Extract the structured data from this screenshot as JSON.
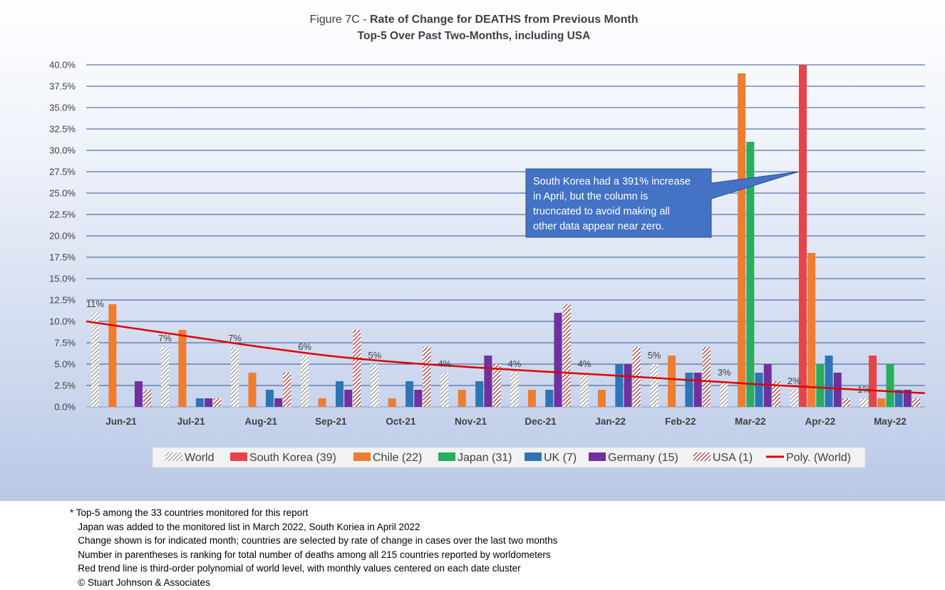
{
  "chart_data": {
    "type": "bar",
    "title_prefix": "Figure 7C - ",
    "title_bold": "Rate of Change for DEATHS from Previous Month",
    "subtitle": "Top-5 Over Past Two-Months, including USA",
    "categories": [
      "Jun-21",
      "Jul-21",
      "Aug-21",
      "Sep-21",
      "Oct-21",
      "Nov-21",
      "Dec-21",
      "Jan-22",
      "Feb-22",
      "Mar-22",
      "Apr-22",
      "May-22"
    ],
    "y_ticks": [
      "0.0%",
      "2.5%",
      "5.0%",
      "7.5%",
      "10.0%",
      "12.5%",
      "15.0%",
      "17.5%",
      "20.0%",
      "22.5%",
      "25.0%",
      "27.5%",
      "30.0%",
      "32.5%",
      "35.0%",
      "37.5%",
      "40.0%"
    ],
    "ylim": [
      0,
      40
    ],
    "grid": true,
    "legend_position": "bottom",
    "series": [
      {
        "name": "World",
        "color": "#d9d9d9",
        "pattern": "hatch-gray",
        "values": [
          11,
          7,
          7,
          6,
          5,
          4,
          4,
          4,
          5,
          3,
          2,
          1
        ],
        "labels": [
          "11%",
          "7%",
          "7%",
          "6%",
          "5%",
          "4%",
          "4%",
          "4%",
          "5%",
          "3%",
          "2%",
          "1%"
        ]
      },
      {
        "name": "South Korea (39)",
        "color": "#e8434a",
        "pattern": "solid",
        "values": [
          null,
          null,
          null,
          null,
          null,
          null,
          null,
          null,
          null,
          null,
          40,
          6
        ]
      },
      {
        "name": "Chile (22)",
        "color": "#ed7d31",
        "pattern": "solid",
        "values": [
          12,
          9,
          4,
          1,
          1,
          2,
          2,
          2,
          6,
          39,
          18,
          1
        ]
      },
      {
        "name": "Japan (31)",
        "color": "#27ae60",
        "pattern": "solid",
        "values": [
          null,
          null,
          null,
          null,
          null,
          null,
          null,
          null,
          null,
          31,
          5,
          5
        ]
      },
      {
        "name": "UK (7)",
        "color": "#2e75b6",
        "pattern": "solid",
        "values": [
          null,
          1,
          2,
          3,
          3,
          3,
          2,
          5,
          4,
          4,
          6,
          2
        ]
      },
      {
        "name": "Germany (15)",
        "color": "#7030a0",
        "pattern": "solid",
        "values": [
          3,
          1,
          1,
          2,
          2,
          6,
          11,
          5,
          4,
          5,
          4,
          2
        ]
      },
      {
        "name": "USA (1)",
        "color": "#9e2a2a",
        "pattern": "hatch-red",
        "values": [
          2,
          1,
          4,
          9,
          7,
          5,
          12,
          7,
          7,
          3,
          1,
          1
        ]
      }
    ],
    "trendline": {
      "name": "Poly. (World)",
      "color": "#e00000",
      "values": [
        10.0,
        8.2,
        7.0,
        5.95,
        5.2,
        4.65,
        4.15,
        3.7,
        3.2,
        2.7,
        2.25,
        1.6
      ]
    },
    "annotation": {
      "lines": [
        "South Korea had a 391% increase",
        "in April, but the column is",
        "trucncated to avoid making all",
        "other data appear near zero."
      ],
      "bg": "#4472c4",
      "text_color": "#ffffff"
    }
  },
  "footnotes": [
    "* Top-5 among the 33 countries monitored for this report",
    "   Japan was added to the monitored list in March 2022, South Koriea in April 2022",
    "   Change shown is for indicated month; countries are selected by rate of change in cases over the last two months",
    "   Number in parentheses is ranking for total number of deaths among all 215 countries reported by worldometers",
    "   Red trend line is third-order polynomial of world level, with monthly values centered on each date cluster",
    "   © Stuart Johnson & Associates"
  ]
}
